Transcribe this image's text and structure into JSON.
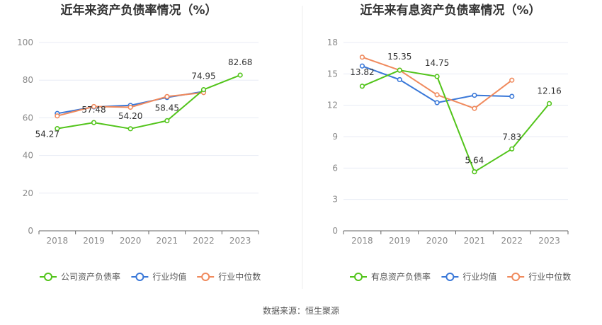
{
  "footer": {
    "source": "数据来源：恒生聚源"
  },
  "colors": {
    "company": "#52c41a",
    "industry_avg": "#3a78d8",
    "industry_median": "#f08a5d",
    "grid": "#e8ebf5",
    "axis": "#666666"
  },
  "chart_data": [
    {
      "type": "line",
      "title": "近年来资产负债率情况（%）",
      "categories": [
        "2018",
        "2019",
        "2020",
        "2021",
        "2022",
        "2023"
      ],
      "ylim": [
        0,
        100
      ],
      "yticks": [
        0,
        20,
        40,
        60,
        80,
        100
      ],
      "grid": true,
      "legend_position": "bottom",
      "series": [
        {
          "name": "公司资产负债率",
          "color": "#52c41a",
          "values": [
            54.27,
            57.48,
            54.2,
            58.45,
            74.95,
            82.68
          ],
          "labels": [
            "54.27",
            "57.48",
            "54.20",
            "58.45",
            "74.95",
            "82.68"
          ]
        },
        {
          "name": "行业均值",
          "color": "#3a78d8",
          "values": [
            62.3,
            65.8,
            66.6,
            70.8,
            74.0,
            null
          ]
        },
        {
          "name": "行业中位数",
          "color": "#f08a5d",
          "values": [
            61.0,
            66.0,
            65.6,
            71.3,
            73.4,
            null
          ]
        }
      ]
    },
    {
      "type": "line",
      "title": "近年来有息资产负债率情况（%）",
      "categories": [
        "2018",
        "2019",
        "2020",
        "2021",
        "2022",
        "2023"
      ],
      "ylim": [
        0,
        18
      ],
      "yticks": [
        0,
        3,
        6,
        9,
        12,
        15,
        18
      ],
      "grid": true,
      "legend_position": "bottom",
      "series": [
        {
          "name": "有息资产负债率",
          "color": "#52c41a",
          "values": [
            13.82,
            15.35,
            14.75,
            5.64,
            7.83,
            12.16
          ],
          "labels": [
            "13.82",
            "15.35",
            "14.75",
            "5.64",
            "7.83",
            "12.16"
          ]
        },
        {
          "name": "行业均值",
          "color": "#3a78d8",
          "values": [
            15.75,
            14.45,
            12.25,
            12.95,
            12.85,
            null
          ]
        },
        {
          "name": "行业中位数",
          "color": "#f08a5d",
          "values": [
            16.6,
            15.35,
            13.0,
            11.7,
            14.4,
            null
          ]
        }
      ]
    }
  ]
}
